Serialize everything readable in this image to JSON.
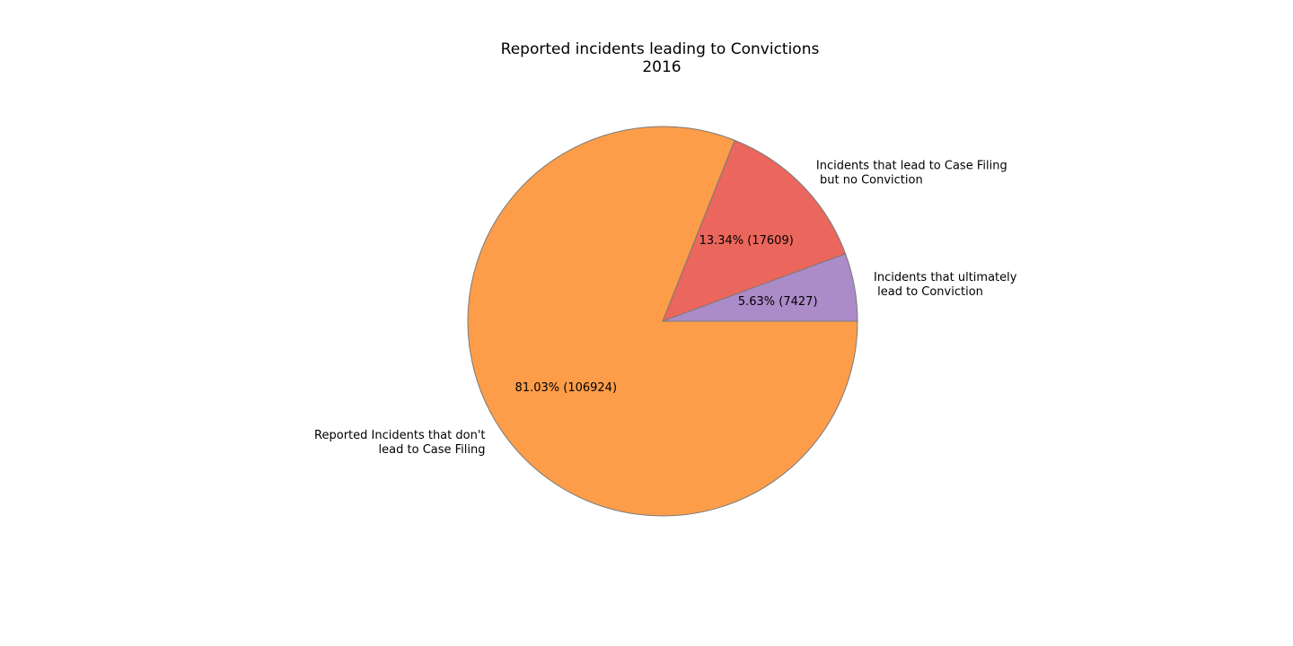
{
  "chart_data": {
    "type": "pie",
    "title_lines": [
      "Reported incidents leading to Convictions",
      "2016"
    ],
    "slices": [
      {
        "label_lines": [
          "Reported Incidents that don't",
          "lead to Case Filing"
        ],
        "value": 106924,
        "percent_label": "81.03%  (106924)",
        "color": "#fd9d4a"
      },
      {
        "label_lines": [
          "Incidents that lead to Case Filing",
          " but no Conviction"
        ],
        "value": 17609,
        "percent_label": "13.34%  (17609)",
        "color": "#eb665c"
      },
      {
        "label_lines": [
          "Incidents that ultimately",
          " lead to Conviction"
        ],
        "value": 7427,
        "percent_label": "5.63%  (7427)",
        "color": "#ab8bc8"
      }
    ],
    "start_angle_deg": 0,
    "direction": "clockwise",
    "edge_color": "#7a7a7a",
    "legend": "none"
  }
}
